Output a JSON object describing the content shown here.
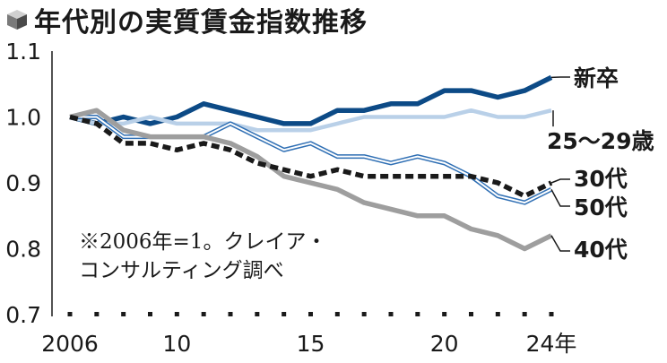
{
  "chart_data": {
    "type": "line",
    "title": "年代別の実質賃金指数推移",
    "note_lines": [
      "※2006年=1。クレイア・",
      "コンサルティング調べ"
    ],
    "x": [
      2006,
      2007,
      2008,
      2009,
      2010,
      2011,
      2012,
      2013,
      2014,
      2015,
      2016,
      2017,
      2018,
      2019,
      2020,
      2021,
      2022,
      2023,
      2024
    ],
    "xlim": [
      2006,
      2024
    ],
    "ylim": [
      0.7,
      1.1
    ],
    "y_ticks": [
      1.1,
      1.0,
      0.9,
      0.8,
      0.7
    ],
    "y_tick_labels": [
      "1.1",
      "1.0",
      "0.9",
      "0.8",
      "0.7"
    ],
    "x_ticks": [
      2006,
      2010,
      2015,
      2020,
      2024
    ],
    "x_tick_labels": [
      "2006",
      "10",
      "15",
      "20",
      "24年"
    ],
    "grid": false,
    "series": [
      {
        "name": "新卒",
        "color": "#0c4a86",
        "style": "solid-thick",
        "values": [
          1.0,
          0.99,
          1.0,
          0.99,
          1.0,
          1.02,
          1.01,
          1.0,
          0.99,
          0.99,
          1.01,
          1.01,
          1.02,
          1.02,
          1.04,
          1.04,
          1.03,
          1.04,
          1.06
        ]
      },
      {
        "name": "25～29歳",
        "color": "#b9d0e8",
        "style": "solid",
        "values": [
          1.0,
          0.99,
          0.99,
          1.0,
          0.99,
          0.99,
          0.99,
          0.98,
          0.98,
          0.98,
          0.99,
          1.0,
          1.0,
          1.0,
          1.0,
          1.01,
          1.0,
          1.0,
          1.01
        ]
      },
      {
        "name": "50代",
        "color": "#2f6fb4",
        "style": "double",
        "values": [
          1.0,
          1.0,
          0.97,
          0.97,
          0.97,
          0.97,
          0.99,
          0.97,
          0.95,
          0.96,
          0.94,
          0.94,
          0.93,
          0.94,
          0.93,
          0.91,
          0.88,
          0.87,
          0.89
        ]
      },
      {
        "name": "40代",
        "color": "#9e9e9e",
        "style": "solid-thick",
        "values": [
          1.0,
          1.01,
          0.98,
          0.97,
          0.97,
          0.97,
          0.96,
          0.94,
          0.91,
          0.9,
          0.89,
          0.87,
          0.86,
          0.85,
          0.85,
          0.83,
          0.82,
          0.8,
          0.82
        ]
      },
      {
        "name": "30代",
        "color": "#1a1a1a",
        "style": "dashed-thick",
        "values": [
          1.0,
          0.99,
          0.96,
          0.96,
          0.95,
          0.96,
          0.95,
          0.93,
          0.92,
          0.91,
          0.92,
          0.91,
          0.91,
          0.91,
          0.91,
          0.91,
          0.9,
          0.88,
          0.9
        ]
      }
    ]
  }
}
